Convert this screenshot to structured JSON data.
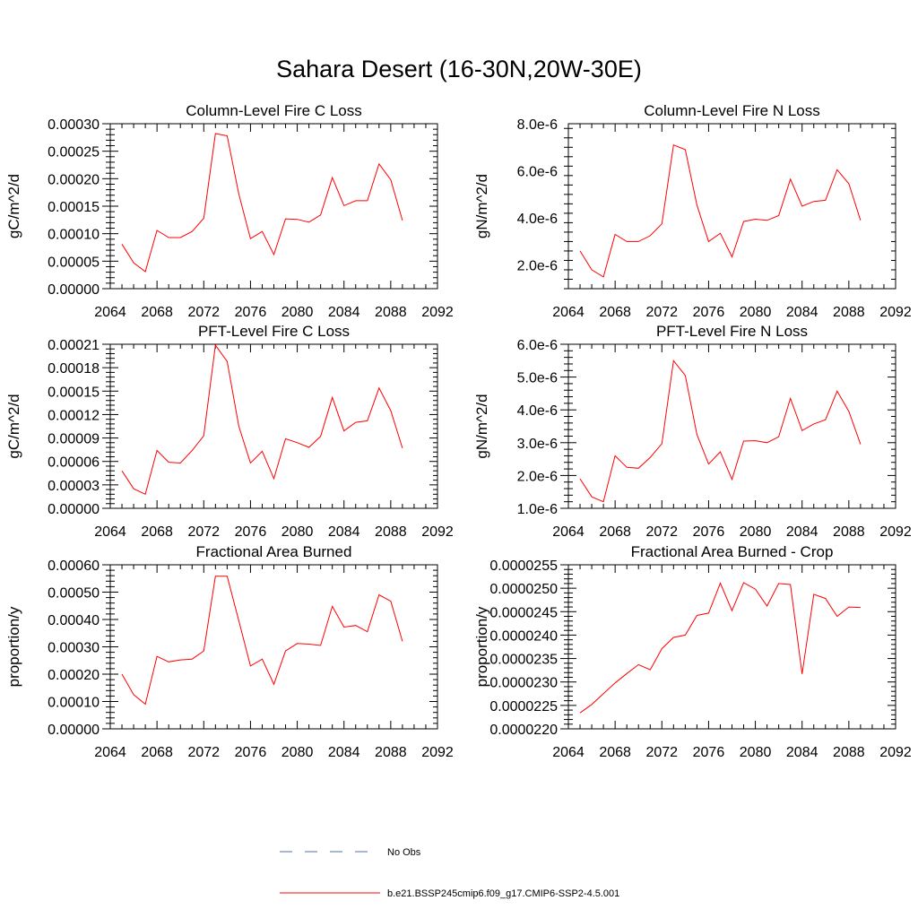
{
  "title": "Sahara Desert (16-30N,20W-30E)",
  "legend": [
    {
      "label": "No Obs",
      "color": "#4f6fb0",
      "dash": "dashed"
    },
    {
      "label": "b.e21.BSSP245cmip6.f09_g17.CMIP6-SSP2-4.5.001",
      "color": "#ff0000",
      "dash": "solid"
    }
  ],
  "chart_data": [
    {
      "type": "line",
      "title": "Column-Level Fire C Loss",
      "ylabel": "gC/m^2/d",
      "xlim": [
        2064,
        2092
      ],
      "ylim": [
        0,
        0.0003
      ],
      "xticks": [
        2064,
        2068,
        2072,
        2076,
        2080,
        2084,
        2088,
        2092
      ],
      "yticks": [
        0,
        5e-05,
        0.0001,
        0.00015,
        0.0002,
        0.00025,
        0.0003
      ],
      "ytick_labels": [
        "0.00000",
        "0.00005",
        "0.00010",
        "0.00015",
        "0.00020",
        "0.00025",
        "0.00030"
      ],
      "x": [
        2065,
        2066,
        2067,
        2068,
        2069,
        2070,
        2071,
        2072,
        2073,
        2074,
        2075,
        2076,
        2077,
        2078,
        2079,
        2080,
        2081,
        2082,
        2083,
        2084,
        2085,
        2086,
        2087,
        2088,
        2089
      ],
      "series": [
        {
          "name": "b.e21.BSSP245cmip6.f09_g17.CMIP6-SSP2-4.5.001",
          "color": "#ff0000",
          "values": [
            8.1e-05,
            4.7e-05,
            3.1e-05,
            0.000106,
            9.3e-05,
            9.3e-05,
            0.000104,
            0.000128,
            0.000282,
            0.000278,
            0.000172,
            9.1e-05,
            0.000104,
            6.2e-05,
            0.000127,
            0.000126,
            0.000121,
            0.000134,
            0.000202,
            0.000151,
            0.00016,
            0.00016,
            0.000227,
            0.000198,
            0.000124
          ]
        }
      ]
    },
    {
      "type": "line",
      "title": "Column-Level Fire N Loss",
      "ylabel": "gN/m^2/d",
      "xlim": [
        2064,
        2092
      ],
      "ylim": [
        1e-06,
        8e-06
      ],
      "xticks": [
        2064,
        2068,
        2072,
        2076,
        2080,
        2084,
        2088,
        2092
      ],
      "yticks": [
        2e-06,
        4e-06,
        6e-06,
        8e-06
      ],
      "ytick_labels": [
        "2.0e-6",
        "4.0e-6",
        "6.0e-6",
        "8.0e-6"
      ],
      "x": [
        2065,
        2066,
        2067,
        2068,
        2069,
        2070,
        2071,
        2072,
        2073,
        2074,
        2075,
        2076,
        2077,
        2078,
        2079,
        2080,
        2081,
        2082,
        2083,
        2084,
        2085,
        2086,
        2087,
        2088,
        2089
      ],
      "series": [
        {
          "name": "b.e21.BSSP245cmip6.f09_g17.CMIP6-SSP2-4.5.001",
          "color": "#ff0000",
          "values": [
            2.6e-06,
            1.8e-06,
            1.5e-06,
            3.3e-06,
            3e-06,
            3e-06,
            3.25e-06,
            3.75e-06,
            7.1e-06,
            6.9e-06,
            4.55e-06,
            3e-06,
            3.35e-06,
            2.35e-06,
            3.85e-06,
            3.95e-06,
            3.9e-06,
            4.1e-06,
            5.65e-06,
            4.5e-06,
            4.7e-06,
            4.75e-06,
            6.05e-06,
            5.45e-06,
            3.9e-06
          ]
        }
      ]
    },
    {
      "type": "line",
      "title": "PFT-Level Fire C Loss",
      "ylabel": "gC/m^2/d",
      "xlim": [
        2064,
        2092
      ],
      "ylim": [
        0,
        0.00021
      ],
      "xticks": [
        2064,
        2068,
        2072,
        2076,
        2080,
        2084,
        2088,
        2092
      ],
      "yticks": [
        0,
        3e-05,
        6e-05,
        9e-05,
        0.00012,
        0.00015,
        0.00018,
        0.00021
      ],
      "ytick_labels": [
        "0.00000",
        "0.00003",
        "0.00006",
        "0.00009",
        "0.00012",
        "0.00015",
        "0.00018",
        "0.00021"
      ],
      "x": [
        2065,
        2066,
        2067,
        2068,
        2069,
        2070,
        2071,
        2072,
        2073,
        2074,
        2075,
        2076,
        2077,
        2078,
        2079,
        2080,
        2081,
        2082,
        2083,
        2084,
        2085,
        2086,
        2087,
        2088,
        2089
      ],
      "series": [
        {
          "name": "b.e21.BSSP245cmip6.f09_g17.CMIP6-SSP2-4.5.001",
          "color": "#ff0000",
          "values": [
            4.8e-05,
            2.5e-05,
            1.8e-05,
            7.4e-05,
            5.9e-05,
            5.8e-05,
            7.4e-05,
            9.3e-05,
            0.000209,
            0.000188,
            0.000105,
            5.8e-05,
            7.3e-05,
            3.8e-05,
            8.9e-05,
            8.4e-05,
            7.8e-05,
            9.2e-05,
            0.000142,
            9.9e-05,
            0.00011,
            0.000112,
            0.000154,
            0.000125,
            7.7e-05
          ]
        }
      ]
    },
    {
      "type": "line",
      "title": "PFT-Level Fire N Loss",
      "ylabel": "gN/m^2/d",
      "xlim": [
        2064,
        2092
      ],
      "ylim": [
        1e-06,
        6e-06
      ],
      "xticks": [
        2064,
        2068,
        2072,
        2076,
        2080,
        2084,
        2088,
        2092
      ],
      "yticks": [
        1e-06,
        2e-06,
        3e-06,
        4e-06,
        5e-06,
        6e-06
      ],
      "ytick_labels": [
        "1.0e-6",
        "2.0e-6",
        "3.0e-6",
        "4.0e-6",
        "5.0e-6",
        "6.0e-6"
      ],
      "x": [
        2065,
        2066,
        2067,
        2068,
        2069,
        2070,
        2071,
        2072,
        2073,
        2074,
        2075,
        2076,
        2077,
        2078,
        2079,
        2080,
        2081,
        2082,
        2083,
        2084,
        2085,
        2086,
        2087,
        2088,
        2089
      ],
      "series": [
        {
          "name": "b.e21.BSSP245cmip6.f09_g17.CMIP6-SSP2-4.5.001",
          "color": "#ff0000",
          "values": [
            1.9e-06,
            1.35e-06,
            1.2e-06,
            2.6e-06,
            2.25e-06,
            2.22e-06,
            2.55e-06,
            2.97e-06,
            5.5e-06,
            5.05e-06,
            3.25e-06,
            2.35e-06,
            2.72e-06,
            1.88e-06,
            3.05e-06,
            3.06e-06,
            3e-06,
            3.18e-06,
            4.35e-06,
            3.37e-06,
            3.57e-06,
            3.7e-06,
            4.57e-06,
            3.95e-06,
            2.95e-06
          ]
        }
      ]
    },
    {
      "type": "line",
      "title": "Fractional Area Burned",
      "ylabel": "proportion/y",
      "xlim": [
        2064,
        2092
      ],
      "ylim": [
        0,
        0.0006
      ],
      "xticks": [
        2064,
        2068,
        2072,
        2076,
        2080,
        2084,
        2088,
        2092
      ],
      "yticks": [
        0,
        0.0001,
        0.0002,
        0.0003,
        0.0004,
        0.0005,
        0.0006
      ],
      "ytick_labels": [
        "0.00000",
        "0.00010",
        "0.00020",
        "0.00030",
        "0.00040",
        "0.00050",
        "0.00060"
      ],
      "x": [
        2065,
        2066,
        2067,
        2068,
        2069,
        2070,
        2071,
        2072,
        2073,
        2074,
        2075,
        2076,
        2077,
        2078,
        2079,
        2080,
        2081,
        2082,
        2083,
        2084,
        2085,
        2086,
        2087,
        2088,
        2089
      ],
      "series": [
        {
          "name": "b.e21.BSSP245cmip6.f09_g17.CMIP6-SSP2-4.5.001",
          "color": "#ff0000",
          "values": [
            0.0002,
            0.000125,
            9e-05,
            0.000265,
            0.000245,
            0.000252,
            0.000255,
            0.000285,
            0.000558,
            0.000558,
            0.000395,
            0.00023,
            0.000255,
            0.000163,
            0.000285,
            0.000312,
            0.00031,
            0.000305,
            0.000448,
            0.000372,
            0.000378,
            0.000355,
            0.00049,
            0.000467,
            0.00032
          ]
        }
      ]
    },
    {
      "type": "line",
      "title": "Fractional Area Burned - Crop",
      "ylabel": "proportion/y",
      "xlim": [
        2064,
        2092
      ],
      "ylim": [
        2.2e-05,
        2.55e-05
      ],
      "xticks": [
        2064,
        2068,
        2072,
        2076,
        2080,
        2084,
        2088,
        2092
      ],
      "yticks": [
        2.2e-05,
        2.25e-05,
        2.3e-05,
        2.35e-05,
        2.4e-05,
        2.45e-05,
        2.5e-05,
        2.55e-05
      ],
      "ytick_labels": [
        "0.0000220",
        "0.0000225",
        "0.0000230",
        "0.0000235",
        "0.0000240",
        "0.0000245",
        "0.0000250",
        "0.0000255"
      ],
      "x": [
        2065,
        2066,
        2067,
        2068,
        2069,
        2070,
        2071,
        2072,
        2073,
        2074,
        2075,
        2076,
        2077,
        2078,
        2079,
        2080,
        2081,
        2082,
        2083,
        2084,
        2085,
        2086,
        2087,
        2088,
        2089
      ],
      "series": [
        {
          "name": "b.e21.BSSP245cmip6.f09_g17.CMIP6-SSP2-4.5.001",
          "color": "#ff0000",
          "values": [
            2.234e-05,
            2.252e-05,
            2.275e-05,
            2.298e-05,
            2.318e-05,
            2.337e-05,
            2.326e-05,
            2.371e-05,
            2.395e-05,
            2.4e-05,
            2.442e-05,
            2.447e-05,
            2.511e-05,
            2.452e-05,
            2.512e-05,
            2.498e-05,
            2.462e-05,
            2.51e-05,
            2.508e-05,
            2.317e-05,
            2.487e-05,
            2.478e-05,
            2.44e-05,
            2.46e-05,
            2.459e-05
          ]
        }
      ]
    }
  ]
}
